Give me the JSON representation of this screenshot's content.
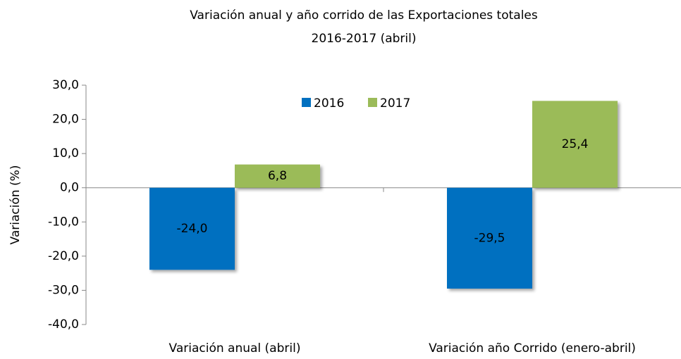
{
  "chart_data": {
    "type": "bar",
    "title": "Variación anual y año corrido de las Exportaciones totales",
    "subtitle": "2016-2017 (abril)",
    "y_label": "Variación (%)",
    "categories": [
      "Variación anual (abril)",
      "Variación año Corrido (enero-abril)"
    ],
    "series": [
      {
        "name": "2016",
        "color": "#0070c0",
        "values": [
          -24.0,
          -29.5
        ],
        "value_labels": [
          "-24,0",
          "-29,5"
        ]
      },
      {
        "name": "2017",
        "color": "#9bbb59",
        "values": [
          6.8,
          25.4
        ],
        "value_labels": [
          "6,8",
          "25,4"
        ]
      }
    ],
    "ylim": [
      -40,
      30
    ],
    "yticks": [
      {
        "value": 30,
        "label": "30,0"
      },
      {
        "value": 20,
        "label": "20,0"
      },
      {
        "value": 10,
        "label": "10,0"
      },
      {
        "value": 0,
        "label": "0,0"
      },
      {
        "value": -10,
        "label": "-10,0"
      },
      {
        "value": -20,
        "label": "-20,0"
      },
      {
        "value": -30,
        "label": "-30,0"
      },
      {
        "value": -40,
        "label": "-40,0"
      }
    ],
    "legend": "top"
  }
}
